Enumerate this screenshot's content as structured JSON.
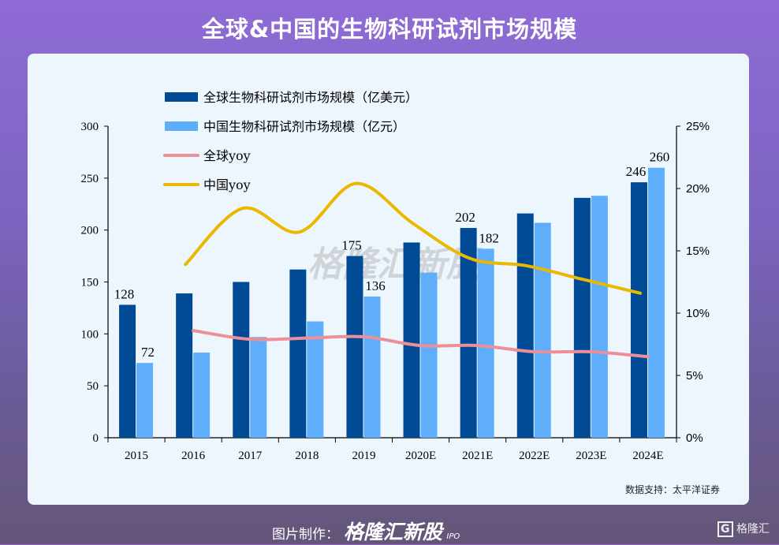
{
  "title": "全球&中国的生物科研试剂市场规模",
  "source": "数据支持：太平洋证券",
  "footer": {
    "label": "图片制作：",
    "brand": "格隆汇新股",
    "brand_sub": "IPO",
    "logo": "格隆汇"
  },
  "watermark": "格隆汇新股",
  "chart_data": {
    "type": "bar+line",
    "categories": [
      "2015",
      "2016",
      "2017",
      "2018",
      "2019",
      "2020E",
      "2021E",
      "2022E",
      "2023E",
      "2024E"
    ],
    "y_left": {
      "range": [
        0,
        300
      ],
      "ticks": [
        "0",
        "50",
        "100",
        "150",
        "200",
        "250",
        "300"
      ]
    },
    "y_right": {
      "range": [
        0,
        25
      ],
      "ticks": [
        "0%",
        "5%",
        "10%",
        "15%",
        "20%",
        "25%"
      ]
    },
    "legend_position": "top-left",
    "grid": false,
    "series": [
      {
        "name": "全球生物科研试剂市场规模（亿美元）",
        "type": "bar",
        "axis": "left",
        "color": "#004a96",
        "values": [
          128,
          139,
          150,
          162,
          175,
          188,
          202,
          216,
          231,
          246
        ],
        "labels": [
          "128",
          "",
          "",
          "",
          "175",
          "",
          "202",
          "",
          "",
          "246"
        ]
      },
      {
        "name": "中国生物科研试剂市场规模（亿元）",
        "type": "bar",
        "axis": "left",
        "color": "#5eaefc",
        "values": [
          72,
          82,
          97,
          112,
          136,
          159,
          182,
          207,
          233,
          260
        ],
        "labels": [
          "72",
          "",
          "",
          "",
          "136",
          "",
          "182",
          "",
          "",
          "260"
        ]
      },
      {
        "name": "全球yoy",
        "type": "line",
        "axis": "right",
        "color": "#ee8f97",
        "values": [
          null,
          8.6,
          7.9,
          8.0,
          8.1,
          7.4,
          7.4,
          6.9,
          6.9,
          6.5
        ]
      },
      {
        "name": "中国yoy",
        "type": "line",
        "axis": "right",
        "color": "#e9b800",
        "values": [
          null,
          13.9,
          18.4,
          16.5,
          20.4,
          17.2,
          14.4,
          13.8,
          12.7,
          11.6
        ]
      }
    ]
  }
}
